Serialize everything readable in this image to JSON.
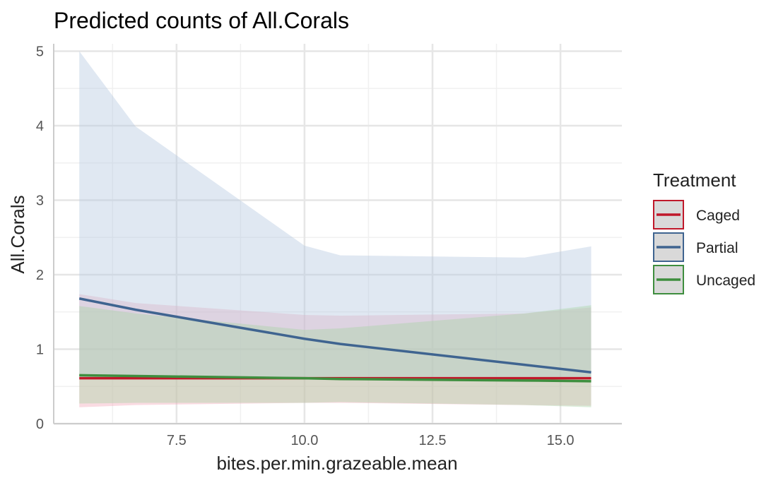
{
  "chart_data": {
    "type": "line",
    "title": "Predicted counts of All.Corals",
    "xlabel": "bites.per.min.grazeable.mean",
    "ylabel": "All.Corals",
    "xlim": [
      5.1,
      16.2
    ],
    "ylim": [
      0,
      5.1
    ],
    "x_ticks": [
      7.5,
      10.0,
      12.5,
      15.0
    ],
    "x_tick_labels": [
      "7.5",
      "10.0",
      "12.5",
      "15.0"
    ],
    "y_ticks": [
      0,
      1,
      2,
      3,
      4,
      5
    ],
    "y_tick_labels": [
      "0",
      "1",
      "2",
      "3",
      "4",
      "5"
    ],
    "grid": true,
    "legend": {
      "title": "Treatment",
      "position": "right"
    },
    "series": [
      {
        "name": "Caged",
        "color": "#C0182A",
        "x": [
          5.6,
          6.7,
          10.0,
          10.7,
          14.3,
          15.6
        ],
        "y": [
          0.61,
          0.61,
          0.61,
          0.61,
          0.61,
          0.61
        ],
        "lower": [
          0.22,
          0.25,
          0.28,
          0.28,
          0.25,
          0.24
        ],
        "upper": [
          1.74,
          1.62,
          1.46,
          1.45,
          1.48,
          1.56
        ]
      },
      {
        "name": "Partial",
        "color": "#3F6490",
        "x": [
          5.6,
          6.7,
          10.0,
          10.7,
          14.3,
          15.6
        ],
        "y": [
          1.68,
          1.53,
          1.14,
          1.07,
          0.79,
          0.69
        ],
        "lower": [
          0.6,
          0.6,
          0.6,
          0.6,
          0.6,
          0.6
        ],
        "upper": [
          5.0,
          3.99,
          2.39,
          2.26,
          2.23,
          2.38
        ]
      },
      {
        "name": "Uncaged",
        "color": "#3E8E3E",
        "x": [
          5.6,
          6.7,
          10.0,
          10.7,
          14.3,
          15.6
        ],
        "y": [
          0.65,
          0.64,
          0.61,
          0.6,
          0.58,
          0.57
        ],
        "lower": [
          0.27,
          0.28,
          0.28,
          0.29,
          0.25,
          0.22
        ],
        "upper": [
          1.58,
          1.48,
          1.26,
          1.28,
          1.48,
          1.59
        ]
      }
    ]
  },
  "colors": {
    "Caged_fill": "#F2A9B9",
    "Partial_fill": "#B6C9E1",
    "Uncaged_fill": "#A9D5A6",
    "legend_key_bg": "#D9D9D9",
    "grid_major": "#E6E6E6",
    "grid_minor": "#F0F0F0"
  }
}
